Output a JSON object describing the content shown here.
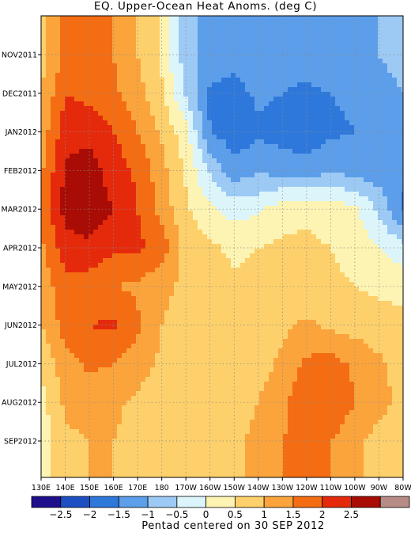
{
  "chart_data": {
    "type": "heatmap",
    "title": "EQ. Upper-Ocean Heat Anoms. (deg C)",
    "footer": "Pentad centered on 30 SEP 2012",
    "xlabel": "",
    "ylabel": "",
    "x_ticks": [
      "130E",
      "140E",
      "150E",
      "160E",
      "170E",
      "180",
      "170W",
      "160W",
      "150W",
      "140W",
      "130W",
      "120W",
      "110W",
      "100W",
      "90W",
      "80W"
    ],
    "y_ticks": [
      "NOV2011",
      "DEC2011",
      "JAN2012",
      "FEB2012",
      "MAR2012",
      "APR2012",
      "MAY2012",
      "JUN2012",
      "JUL2012",
      "AUG2012",
      "SEP2012"
    ],
    "colorbar": {
      "levels": [
        "-2.5",
        "-2",
        "-1.5",
        "-1",
        "-0.5",
        "0",
        "0.5",
        "1",
        "1.5",
        "2",
        "2.5"
      ],
      "colors": [
        "#1e0f8c",
        "#1d4fc2",
        "#2e78dc",
        "#5c9ee9",
        "#9ccaf5",
        "#dcf5fb",
        "#fdf3b2",
        "#fdd06b",
        "#fba43c",
        "#f46d13",
        "#e52a0c",
        "#a80c05",
        "#b88c86"
      ]
    },
    "grid": true,
    "approximate_anomaly_field": {
      "description_units": "deg C",
      "longitudes": [
        "130E",
        "140E",
        "150E",
        "160E",
        "170E",
        "180",
        "170W",
        "160W",
        "150W",
        "140W",
        "130W",
        "120W",
        "110W",
        "100W",
        "90W",
        "80W"
      ],
      "rows": [
        {
          "time": "NOV2011",
          "values": [
            0.8,
            1.6,
            1.6,
            1.5,
            1.0,
            0.4,
            -0.8,
            -1.2,
            -1.3,
            -1.0,
            -1.2,
            -1.3,
            -1.1,
            -1.2,
            -1.0,
            -0.8
          ]
        },
        {
          "time": "DEC2011",
          "values": [
            1.0,
            2.0,
            1.8,
            1.6,
            1.2,
            0.6,
            -0.6,
            -1.6,
            -1.7,
            -1.4,
            -1.5,
            -1.6,
            -1.5,
            -1.4,
            -1.2,
            -1.0
          ]
        },
        {
          "time": "JAN2012",
          "values": [
            1.2,
            2.3,
            2.4,
            2.0,
            1.5,
            0.9,
            0.2,
            -1.5,
            -1.8,
            -1.6,
            -1.7,
            -1.8,
            -1.6,
            -1.5,
            -1.4,
            -1.2
          ]
        },
        {
          "time": "FEB2012",
          "values": [
            1.4,
            2.6,
            2.7,
            2.3,
            1.9,
            1.2,
            0.4,
            -0.6,
            -1.3,
            -1.1,
            -1.2,
            -1.3,
            -1.1,
            -1.2,
            -1.3,
            -1.4
          ]
        },
        {
          "time": "MAR2012",
          "values": [
            1.5,
            2.7,
            2.8,
            2.5,
            2.0,
            1.3,
            0.6,
            0.1,
            -0.2,
            -0.1,
            0.3,
            0.4,
            0.3,
            0.1,
            -0.6,
            -1.6
          ]
        },
        {
          "time": "APR2012",
          "values": [
            1.4,
            2.3,
            2.4,
            2.1,
            2.1,
            1.8,
            0.8,
            0.6,
            0.4,
            0.5,
            0.6,
            0.6,
            0.5,
            0.3,
            0.0,
            -0.3
          ]
        },
        {
          "time": "MAY2012",
          "values": [
            1.2,
            1.8,
            1.7,
            1.5,
            1.4,
            1.1,
            0.9,
            0.7,
            0.6,
            0.6,
            0.7,
            0.6,
            0.6,
            0.5,
            0.4,
            0.3
          ]
        },
        {
          "time": "JUN2012",
          "values": [
            1.0,
            1.7,
            2.0,
            2.1,
            1.6,
            1.0,
            0.8,
            0.7,
            0.6,
            0.6,
            0.9,
            1.1,
            0.9,
            0.8,
            0.7,
            0.7
          ]
        },
        {
          "time": "JUL2012",
          "values": [
            0.6,
            1.3,
            1.6,
            1.5,
            1.2,
            0.9,
            0.7,
            0.6,
            0.6,
            0.8,
            1.1,
            1.6,
            1.7,
            1.4,
            1.1,
            0.8
          ]
        },
        {
          "time": "AUG2012",
          "values": [
            0.3,
            1.1,
            1.2,
            1.1,
            0.9,
            0.8,
            0.6,
            0.6,
            0.7,
            1.0,
            1.4,
            1.9,
            2.0,
            1.5,
            1.2,
            0.8
          ]
        },
        {
          "time": "SEP2012",
          "values": [
            0.2,
            0.9,
            1.0,
            1.0,
            0.8,
            0.7,
            0.6,
            0.5,
            0.8,
            1.2,
            1.5,
            1.6,
            1.5,
            1.1,
            0.8,
            0.6
          ]
        }
      ]
    }
  }
}
